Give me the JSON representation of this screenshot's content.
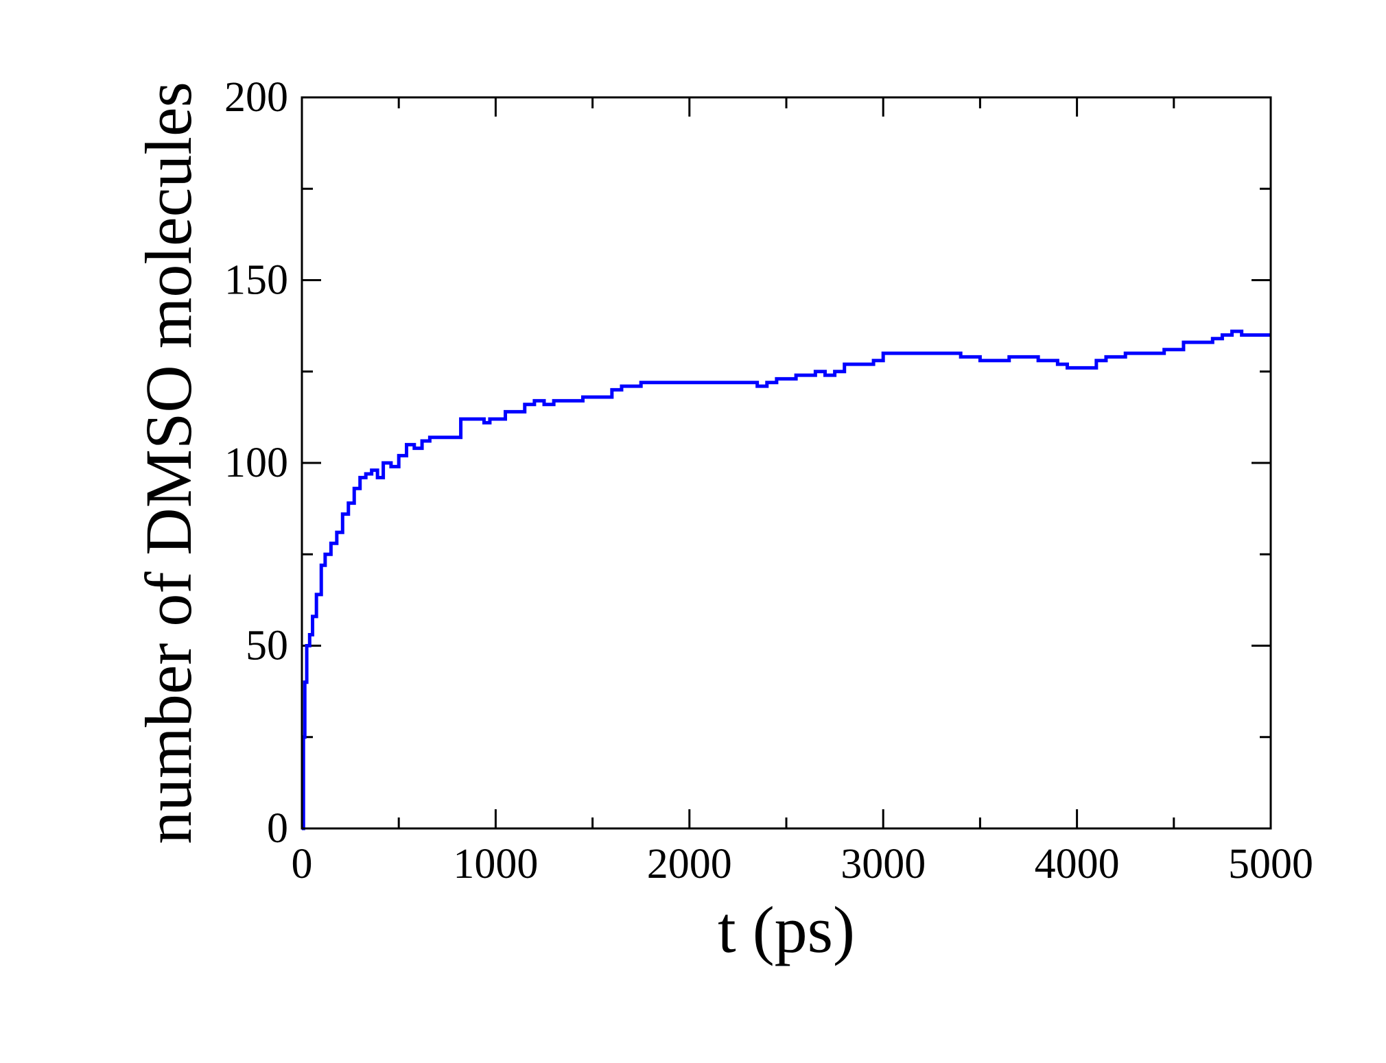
{
  "chart_data": {
    "type": "line",
    "title": "",
    "xlabel": "t (ps)",
    "ylabel": "number of DMSO molecules",
    "xlim": [
      0,
      5000
    ],
    "ylim": [
      0,
      200
    ],
    "x_ticks": [
      0,
      1000,
      2000,
      3000,
      4000,
      5000
    ],
    "y_ticks": [
      0,
      50,
      100,
      150,
      200
    ],
    "x_minor_step": 500,
    "y_minor_step": 25,
    "grid": false,
    "series": [
      {
        "color": "#0000ff",
        "x": [
          0,
          8,
          15,
          25,
          40,
          55,
          75,
          100,
          120,
          150,
          180,
          210,
          240,
          270,
          300,
          330,
          360,
          390,
          420,
          460,
          500,
          540,
          580,
          620,
          660,
          700,
          740,
          780,
          820,
          860,
          900,
          940,
          970,
          1000,
          1050,
          1100,
          1150,
          1200,
          1250,
          1300,
          1350,
          1400,
          1450,
          1500,
          1550,
          1600,
          1650,
          1700,
          1750,
          1800,
          1850,
          1900,
          1950,
          2000,
          2100,
          2200,
          2300,
          2350,
          2400,
          2450,
          2500,
          2550,
          2600,
          2650,
          2700,
          2750,
          2800,
          2850,
          2900,
          2950,
          3000,
          3050,
          3100,
          3200,
          3300,
          3400,
          3450,
          3500,
          3550,
          3600,
          3650,
          3700,
          3750,
          3800,
          3850,
          3900,
          3950,
          4000,
          4050,
          4100,
          4150,
          4200,
          4250,
          4300,
          4350,
          4400,
          4450,
          4500,
          4550,
          4600,
          4650,
          4700,
          4750,
          4800,
          4850,
          4900,
          4950,
          5000
        ],
        "values": [
          0,
          25,
          40,
          50,
          53,
          58,
          64,
          72,
          75,
          78,
          81,
          86,
          89,
          93,
          96,
          97,
          98,
          96,
          100,
          99,
          102,
          105,
          104,
          106,
          107,
          107,
          107,
          107,
          112,
          112,
          112,
          111,
          112,
          112,
          114,
          114,
          116,
          117,
          116,
          117,
          117,
          117,
          118,
          118,
          118,
          120,
          121,
          121,
          122,
          122,
          122,
          122,
          122,
          122,
          122,
          122,
          122,
          121,
          122,
          123,
          123,
          124,
          124,
          125,
          124,
          125,
          127,
          127,
          127,
          128,
          130,
          130,
          130,
          130,
          130,
          129,
          129,
          128,
          128,
          128,
          129,
          129,
          129,
          128,
          128,
          127,
          126,
          126,
          126,
          128,
          129,
          129,
          130,
          130,
          130,
          130,
          131,
          131,
          133,
          133,
          133,
          134,
          135,
          136,
          135,
          135,
          135,
          135
        ]
      }
    ]
  }
}
